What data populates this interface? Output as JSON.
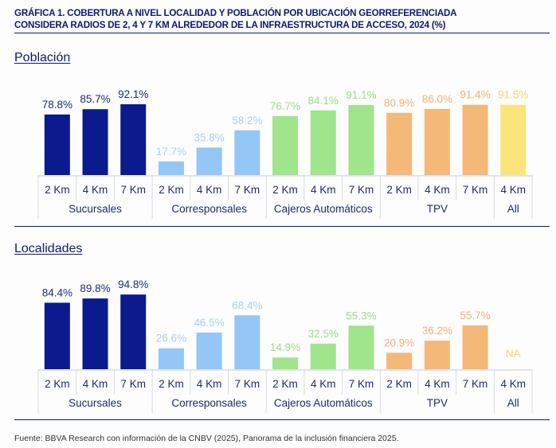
{
  "header": {
    "title_line1": "GRÁFICA 1. COBERTURA A NIVEL LOCALIDAD Y POBLACIÓN POR UBICACIÓN GEORREFERENCIADA",
    "title_line2": "CONSIDERA RADIOS DE 2, 4 Y 7 KM ALREDEDOR DE LA INFRAESTRUCTURA DE ACCESO, 2024 (%)"
  },
  "footer": {
    "source": "Fuente: BBVA Research con información de la CNBV (2025), Panorama de la inclusión financiera 2025."
  },
  "colors": {
    "Sucursales": "#0b1a8c",
    "Corresponsales": "#94c6f6",
    "Cajeros Automáticos": "#a0e48c",
    "TPV": "#f4b878",
    "All": "#fae57c"
  },
  "label_colors": {
    "Sucursales": "#1d2b7e",
    "Corresponsales": "#a8cff4",
    "Cajeros Automáticos": "#9edb8b",
    "TPV": "#f1b07a",
    "All": "#f4d46a"
  },
  "chart_data": [
    {
      "type": "bar",
      "title": "Población",
      "groups": [
        {
          "name": "Sucursales",
          "categories": [
            "2 Km",
            "4 Km",
            "7 Km"
          ],
          "values": [
            78.8,
            85.7,
            92.1
          ],
          "labels": [
            "78.8%",
            "85.7%",
            "92.1%"
          ]
        },
        {
          "name": "Corresponsales",
          "categories": [
            "2 Km",
            "4 Km",
            "7 Km"
          ],
          "values": [
            17.7,
            35.8,
            58.2
          ],
          "labels": [
            "17.7%",
            "35.8%",
            "58.2%"
          ]
        },
        {
          "name": "Cajeros Automáticos",
          "categories": [
            "2 Km",
            "4 Km",
            "7 Km"
          ],
          "values": [
            76.7,
            84.1,
            91.1
          ],
          "labels": [
            "76.7%",
            "84.1%",
            "91.1%"
          ]
        },
        {
          "name": "TPV",
          "categories": [
            "2 Km",
            "4 Km",
            "7 Km"
          ],
          "values": [
            80.9,
            86.0,
            91.4
          ],
          "labels": [
            "80.9%",
            "86.0%",
            "91.4%"
          ]
        },
        {
          "name": "All",
          "categories": [
            "4 Km"
          ],
          "values": [
            91.5
          ],
          "labels": [
            "91.5%"
          ]
        }
      ],
      "ylim": [
        0,
        100
      ],
      "grid": false
    },
    {
      "type": "bar",
      "title": "Localidades",
      "groups": [
        {
          "name": "Sucursales",
          "categories": [
            "2 Km",
            "4 Km",
            "7 Km"
          ],
          "values": [
            84.4,
            89.8,
            94.8
          ],
          "labels": [
            "84.4%",
            "89.8%",
            "94.8%"
          ]
        },
        {
          "name": "Corresponsales",
          "categories": [
            "2 Km",
            "4 Km",
            "7 Km"
          ],
          "values": [
            26.6,
            46.5,
            68.4
          ],
          "labels": [
            "26.6%",
            "46.5%",
            "68.4%"
          ]
        },
        {
          "name": "Cajeros Automáticos",
          "categories": [
            "2 Km",
            "4 Km",
            "7 Km"
          ],
          "values": [
            14.9,
            32.5,
            55.3
          ],
          "labels": [
            "14.9%",
            "32.5%",
            "55.3%"
          ]
        },
        {
          "name": "TPV",
          "categories": [
            "2 Km",
            "4 Km",
            "7 Km"
          ],
          "values": [
            20.9,
            36.2,
            55.7
          ],
          "labels": [
            "20.9%",
            "36.2%",
            "55.7%"
          ]
        },
        {
          "name": "All",
          "categories": [
            "4 Km"
          ],
          "values": [
            null
          ],
          "labels": [
            "NA"
          ]
        }
      ],
      "ylim": [
        0,
        100
      ],
      "grid": false
    }
  ]
}
